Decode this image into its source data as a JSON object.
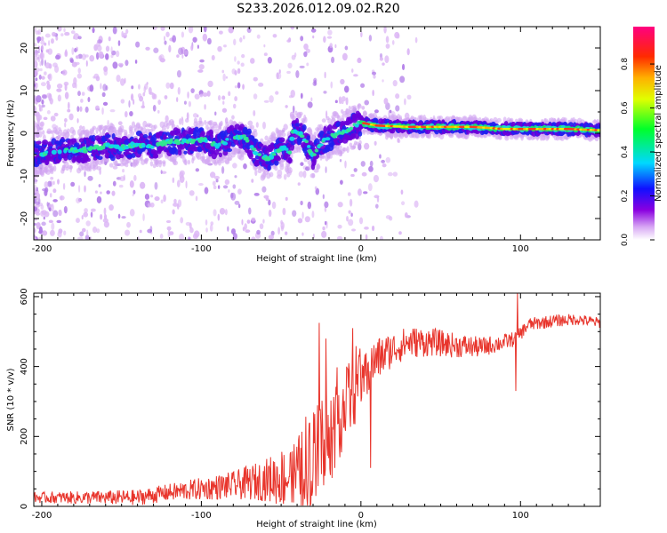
{
  "figure": {
    "title": "S233.2026.012.09.02.R20"
  },
  "colors": {
    "snr_line": "#e8352c",
    "frame": "#000000",
    "background": "#ffffff"
  },
  "chart_data": [
    {
      "type": "heatmap",
      "name": "spectrogram",
      "xlabel": "Height of straight line (km)",
      "ylabel": "Frequency (Hz)",
      "xlim": [
        -205,
        150
      ],
      "ylim": [
        -25,
        25
      ],
      "xticks": [
        -200,
        -100,
        0,
        100
      ],
      "xtick_labels": [
        "-200",
        "-100",
        "0",
        "100"
      ],
      "yticks": [
        -20,
        -10,
        0,
        10,
        20
      ],
      "ytick_labels": [
        "-20",
        "-10",
        "0",
        "10",
        "20"
      ],
      "ridge": {
        "x": [
          -205,
          -190,
          -175,
          -160,
          -150,
          -140,
          -130,
          -120,
          -110,
          -100,
          -90,
          -80,
          -72,
          -65,
          -58,
          -52,
          -48,
          -45,
          -42,
          -38,
          -34,
          -30,
          -27,
          -24,
          -20,
          -15,
          -10,
          -5,
          0,
          10,
          30,
          50,
          70,
          90,
          110,
          130,
          150
        ],
        "y": [
          -5,
          -4,
          -4,
          -3,
          -3.5,
          -2.5,
          -3,
          -2,
          -2,
          -1.5,
          -3,
          -1,
          -1,
          -5,
          -6,
          -4,
          -3,
          -5,
          1,
          0,
          -2,
          -6,
          -3,
          -2,
          -1,
          0,
          0.5,
          1.5,
          2.5,
          1.8,
          1.5,
          1.5,
          1.5,
          1,
          1,
          1,
          0.7
        ]
      },
      "colorbar": {
        "label": "Normalized spectral amplitude",
        "ticks": [
          0,
          0.2,
          0.4,
          0.6,
          0.8
        ],
        "tick_labels": [
          "0.0",
          "0.2",
          "0.4",
          "0.6",
          "0.8"
        ],
        "range": [
          0,
          0.97
        ]
      }
    },
    {
      "type": "line",
      "name": "snr",
      "xlabel": "Height of straight line (km)",
      "ylabel": "SNR (10 * v/v)",
      "xlim": [
        -205,
        150
      ],
      "ylim": [
        0,
        610
      ],
      "xticks": [
        -200,
        -100,
        0,
        100
      ],
      "xtick_labels": [
        "-200",
        "-100",
        "0",
        "100"
      ],
      "yticks": [
        0,
        200,
        400,
        600
      ],
      "ytick_labels": [
        "0",
        "200",
        "400",
        "600"
      ],
      "trend": {
        "x": [
          -205,
          -170,
          -140,
          -120,
          -100,
          -80,
          -60,
          -40,
          -30,
          -22,
          -15,
          -5,
          0,
          10,
          20,
          30,
          45,
          60,
          75,
          90,
          97,
          105,
          120,
          135,
          150
        ],
        "y": [
          25,
          25,
          25,
          40,
          50,
          60,
          75,
          90,
          120,
          190,
          260,
          320,
          360,
          420,
          450,
          470,
          470,
          460,
          455,
          470,
          480,
          520,
          530,
          535,
          525
        ]
      },
      "spread": {
        "x": [
          -205,
          -120,
          -80,
          -60,
          -40,
          -30,
          -20,
          -10,
          0,
          20,
          60,
          100,
          150
        ],
        "y": [
          15,
          25,
          40,
          60,
          110,
          150,
          160,
          120,
          80,
          50,
          35,
          20,
          15
        ]
      },
      "spikes": [
        {
          "x": -26,
          "y": 525
        },
        {
          "x": -22,
          "y": 480
        },
        {
          "x": -5,
          "y": 510
        },
        {
          "x": 6,
          "y": 110
        },
        {
          "x": 98,
          "y": 610
        },
        {
          "x": 97,
          "y": 330
        }
      ]
    }
  ]
}
